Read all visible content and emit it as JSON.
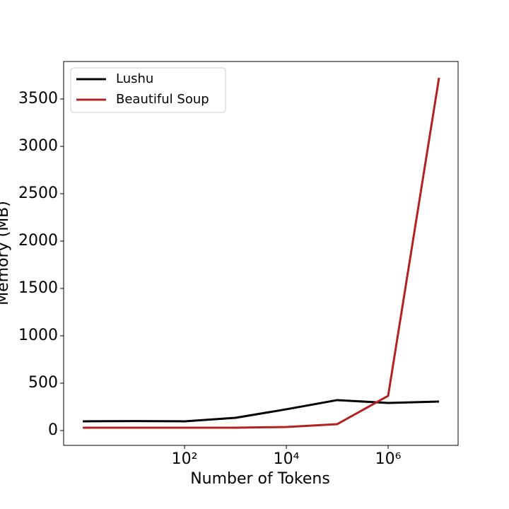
{
  "chart_data": {
    "type": "line",
    "xlabel": "Number of Tokens",
    "ylabel": "Memory (MB)",
    "x": [
      1,
      10,
      100,
      1000,
      10000,
      100000,
      1000000,
      10000000
    ],
    "series": [
      {
        "name": "Lushu",
        "color": "#000000",
        "values": [
          97,
          100,
          97,
          134,
          224,
          321,
          291,
          306
        ]
      },
      {
        "name": "Beautiful Soup",
        "color": "#b22222",
        "values": [
          30,
          30,
          30,
          30,
          37,
          67,
          366,
          3724
        ]
      }
    ],
    "xscale": "log",
    "xlim": [
      0.42,
      23700000
    ],
    "ylim": [
      -157,
      3896
    ],
    "xticks": [
      {
        "value": 100,
        "label": "10²"
      },
      {
        "value": 10000,
        "label": "10⁴"
      },
      {
        "value": 1000000,
        "label": "10⁶"
      }
    ],
    "yticks": [
      0,
      500,
      1000,
      1500,
      2000,
      2500,
      3000,
      3500
    ],
    "legend": "upper left"
  }
}
